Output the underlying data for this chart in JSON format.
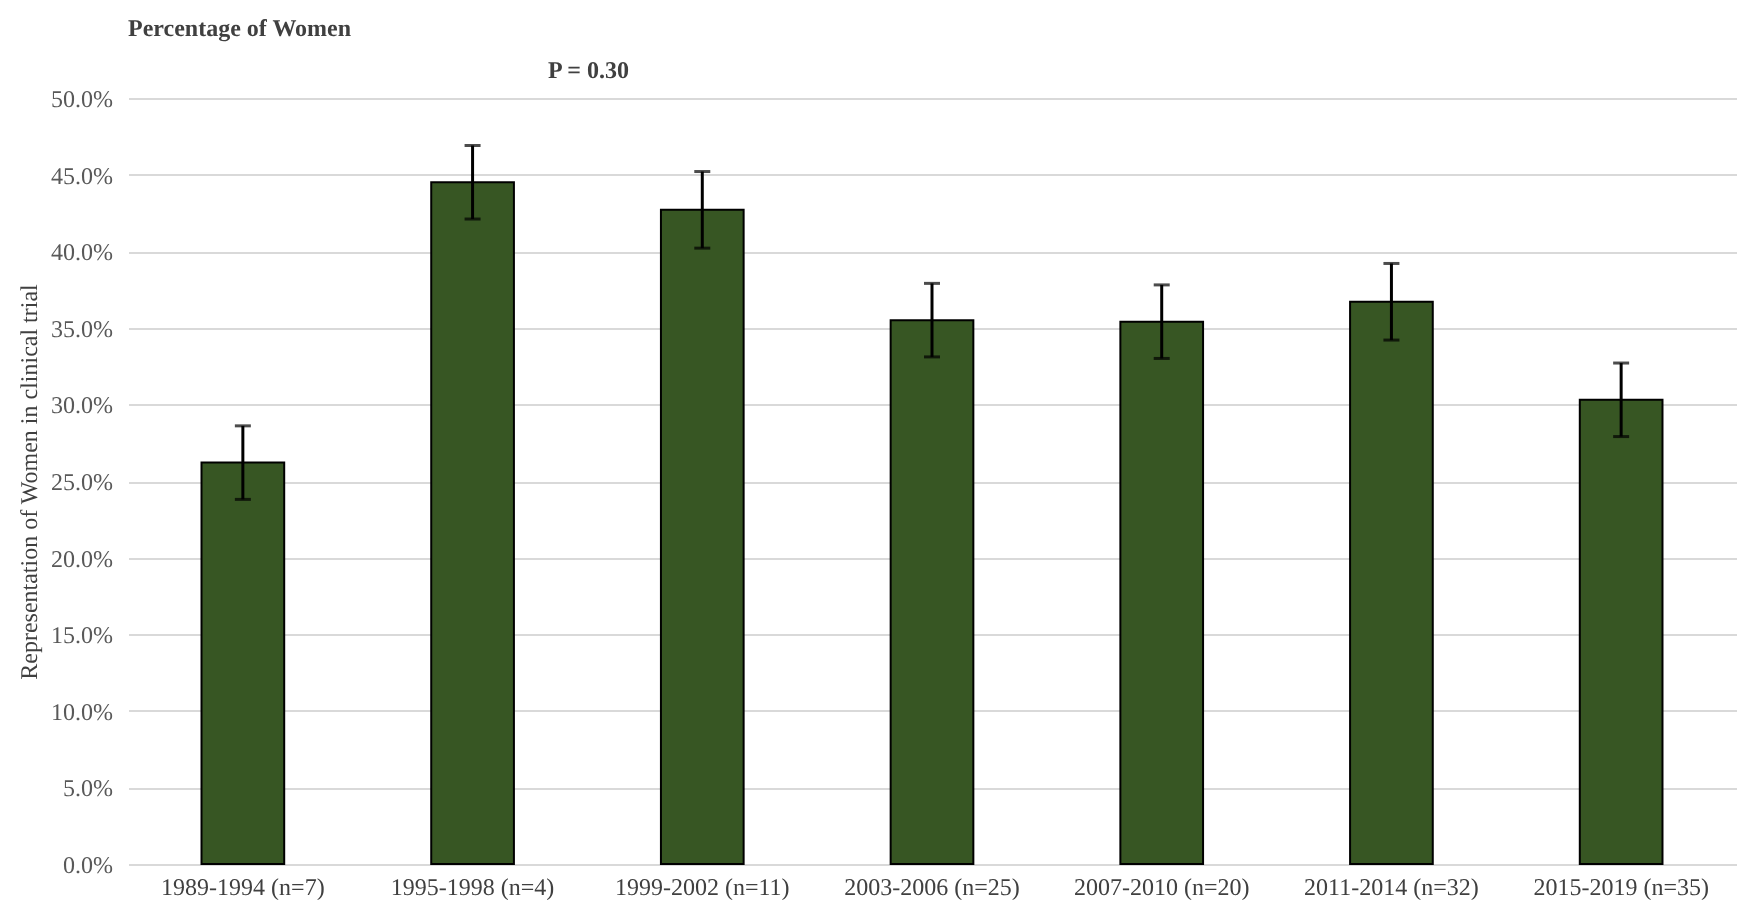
{
  "chart_data": {
    "type": "bar",
    "title": "Percentage of Women",
    "ylabel": "Representation of Women in clinical trial",
    "annotations": [
      "P = 0.30"
    ],
    "categories": [
      "1989-1994 (n=7)",
      "1995-1998 (n=4)",
      "1999-2002 (n=11)",
      "2003-2006 (n=25)",
      "2007-2010 (n=20)",
      "2011-2014 (n=32)",
      "2015-2019 (n=35)"
    ],
    "values": [
      26.2,
      44.5,
      42.7,
      35.5,
      35.4,
      36.7,
      30.3
    ],
    "errors": [
      2.4,
      2.4,
      2.5,
      2.4,
      2.4,
      2.5,
      2.4
    ],
    "color": "#375623",
    "ylim": [
      0,
      50
    ],
    "yticks": [
      {
        "value": 0,
        "label": "0.0%"
      },
      {
        "value": 5,
        "label": "5.0%"
      },
      {
        "value": 10,
        "label": "10.0%"
      },
      {
        "value": 15,
        "label": "15.0%"
      },
      {
        "value": 20,
        "label": "20.0%"
      },
      {
        "value": 25,
        "label": "25.0%"
      },
      {
        "value": 30,
        "label": "30.0%"
      },
      {
        "value": 35,
        "label": "35.0%"
      },
      {
        "value": 40,
        "label": "40.0%"
      },
      {
        "value": 45,
        "label": "45.0%"
      },
      {
        "value": 50,
        "label": "50.0%"
      }
    ],
    "grid": "y"
  }
}
